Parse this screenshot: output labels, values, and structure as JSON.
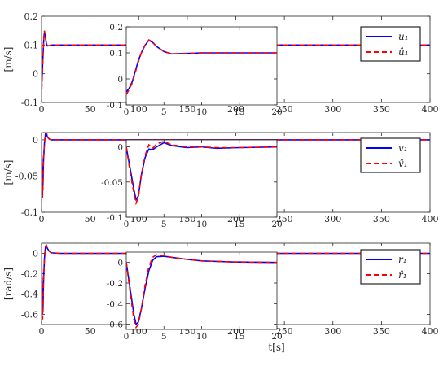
{
  "chart_data": [
    {
      "type": "line",
      "ylabel": "[m/s]",
      "xlim": [
        0,
        400
      ],
      "ylim": [
        -0.1,
        0.2
      ],
      "xticks": [
        0,
        50,
        100,
        150,
        200,
        250,
        300,
        350,
        400
      ],
      "yticks": [
        -0.1,
        0,
        0.1,
        0.2
      ],
      "ytick_labels": [
        "-0.1",
        "0",
        "0.1",
        "0.2"
      ],
      "legend": [
        "u₁",
        "û₁"
      ],
      "legend_position": "top-right",
      "series": [
        {
          "name": "u₁",
          "color": "#0000ff",
          "style": "solid",
          "x": [
            0,
            0.5,
            1,
            1.5,
            2,
            2.5,
            3,
            3.5,
            4,
            5,
            6,
            8,
            10,
            15,
            20,
            400
          ],
          "y": [
            -0.05,
            -0.02,
            0.02,
            0.06,
            0.1,
            0.13,
            0.145,
            0.14,
            0.125,
            0.105,
            0.097,
            0.098,
            0.1,
            0.1,
            0.1,
            0.1
          ]
        },
        {
          "name": "û₁",
          "color": "#ff0000",
          "style": "dashed",
          "x": [
            0,
            0.5,
            1,
            1.5,
            2,
            2.5,
            3,
            3.5,
            4,
            5,
            6,
            8,
            10,
            15,
            20,
            400
          ],
          "y": [
            -0.08,
            -0.03,
            0.01,
            0.06,
            0.1,
            0.13,
            0.15,
            0.14,
            0.125,
            0.105,
            0.097,
            0.098,
            0.1,
            0.1,
            0.1,
            0.1
          ]
        }
      ],
      "inset": {
        "xlim": [
          0,
          20
        ],
        "ylim": [
          -0.1,
          0.2
        ],
        "xticks": [
          0,
          5,
          10,
          15,
          20
        ],
        "yticks": [
          -0.1,
          0,
          0.1,
          0.2
        ],
        "ytick_labels": [
          "-0.1",
          "0",
          "0.1",
          "0.2"
        ],
        "series": [
          {
            "name": "u₁",
            "color": "#0000ff",
            "style": "solid",
            "x": [
              0,
              0.4,
              0.8,
              1.2,
              1.6,
              2,
              2.5,
              3,
              3.5,
              4,
              5,
              6,
              8,
              10,
              15,
              20
            ],
            "y": [
              -0.05,
              -0.035,
              -0.01,
              0.03,
              0.07,
              0.1,
              0.13,
              0.148,
              0.14,
              0.125,
              0.105,
              0.096,
              0.098,
              0.1,
              0.1,
              0.1
            ]
          },
          {
            "name": "û₁",
            "color": "#ff0000",
            "style": "dashed",
            "x": [
              0,
              0.4,
              0.8,
              1.2,
              1.6,
              2,
              2.5,
              3,
              3.5,
              4,
              5,
              6,
              8,
              10,
              15,
              20
            ],
            "y": [
              -0.06,
              -0.04,
              -0.015,
              0.025,
              0.065,
              0.1,
              0.13,
              0.15,
              0.142,
              0.125,
              0.105,
              0.096,
              0.098,
              0.1,
              0.1,
              0.1
            ]
          }
        ]
      }
    },
    {
      "type": "line",
      "ylabel": "[m/s]",
      "xlim": [
        0,
        400
      ],
      "ylim": [
        -0.1,
        0.01
      ],
      "xticks": [
        0,
        50,
        100,
        150,
        200,
        250,
        300,
        350,
        400
      ],
      "yticks": [
        -0.1,
        -0.05,
        0
      ],
      "ytick_labels": [
        "-0.1",
        "-0.05",
        "0"
      ],
      "legend": [
        "v₁",
        "v̂₁"
      ],
      "legend_position": "top-right",
      "series": [
        {
          "name": "v₁",
          "color": "#0000ff",
          "style": "solid",
          "x": [
            0,
            0.5,
            1,
            1.5,
            2,
            3,
            4,
            5,
            6,
            8,
            10,
            20,
            400
          ],
          "y": [
            0,
            -0.04,
            -0.075,
            -0.06,
            -0.03,
            -0.005,
            0.008,
            0.01,
            0.004,
            0.001,
            0,
            0,
            0
          ]
        },
        {
          "name": "v̂₁",
          "color": "#ff0000",
          "style": "dashed",
          "x": [
            0,
            0.5,
            1,
            1.5,
            2,
            3,
            4,
            5,
            6,
            8,
            10,
            20,
            400
          ],
          "y": [
            0,
            -0.045,
            -0.08,
            -0.062,
            -0.03,
            -0.004,
            0.009,
            0.011,
            0.004,
            0.001,
            0,
            0,
            0
          ]
        }
      ],
      "inset": {
        "xlim": [
          0,
          20
        ],
        "ylim": [
          -0.1,
          0.01
        ],
        "xticks": [
          0,
          5,
          10,
          15,
          20
        ],
        "yticks": [
          -0.1,
          -0.05,
          0
        ],
        "ytick_labels": [
          "-0.1",
          "-0.05",
          "0"
        ],
        "series": [
          {
            "name": "v₁",
            "color": "#0000ff",
            "style": "solid",
            "x": [
              0,
              0.5,
              1,
              1.3,
              1.6,
              2,
              2.5,
              3,
              3.5,
              4,
              5,
              6,
              8,
              10,
              12,
              15,
              20
            ],
            "y": [
              0,
              -0.03,
              -0.06,
              -0.075,
              -0.07,
              -0.04,
              -0.015,
              -0.003,
              -0.004,
              0,
              0.006,
              0.002,
              -0.001,
              0,
              -0.002,
              -0.001,
              0
            ]
          },
          {
            "name": "v̂₁",
            "color": "#ff0000",
            "style": "dashed",
            "x": [
              0,
              0.5,
              1,
              1.3,
              1.6,
              2,
              2.5,
              3,
              3.5,
              4,
              5,
              6,
              8,
              10,
              12,
              15,
              20
            ],
            "y": [
              0,
              -0.035,
              -0.065,
              -0.08,
              -0.072,
              -0.04,
              -0.012,
              0.003,
              -0.002,
              0.004,
              0.008,
              0.003,
              0,
              0,
              -0.001,
              -0.001,
              0
            ]
          }
        ]
      }
    },
    {
      "type": "line",
      "ylabel": "[rad/s]",
      "xlabel": "t[s]",
      "xlim": [
        0,
        400
      ],
      "ylim": [
        -0.7,
        0.1
      ],
      "xticks": [
        0,
        50,
        100,
        150,
        200,
        250,
        300,
        350,
        400
      ],
      "yticks": [
        -0.6,
        -0.4,
        -0.2,
        0
      ],
      "ytick_labels": [
        "-0.6",
        "-0.4",
        "-0.2",
        "0"
      ],
      "legend": [
        "r₁",
        "r̂₁"
      ],
      "legend_position": "top-right",
      "series": [
        {
          "name": "r₁",
          "color": "#0000ff",
          "style": "solid",
          "x": [
            0,
            0.5,
            1,
            1.5,
            2,
            3,
            4,
            5,
            6,
            8,
            10,
            20,
            400
          ],
          "y": [
            0,
            -0.3,
            -0.6,
            -0.55,
            -0.3,
            -0.05,
            0.06,
            0.07,
            0.05,
            0.02,
            0.005,
            0,
            0
          ]
        },
        {
          "name": "r̂₁",
          "color": "#ff0000",
          "style": "dashed",
          "x": [
            0,
            0.5,
            1,
            1.5,
            2,
            3,
            4,
            5,
            6,
            8,
            10,
            20,
            400
          ],
          "y": [
            0,
            -0.35,
            -0.65,
            -0.57,
            -0.3,
            -0.04,
            0.07,
            0.08,
            0.05,
            0.02,
            0.005,
            0,
            0
          ]
        }
      ],
      "inset": {
        "xlim": [
          0,
          20
        ],
        "ylim": [
          -0.65,
          0.1
        ],
        "xticks": [
          0,
          5,
          10,
          15,
          20
        ],
        "yticks": [
          -0.6,
          -0.4,
          -0.2,
          0
        ],
        "ytick_labels": [
          "-0.6",
          "-0.4",
          "-0.2",
          "0"
        ],
        "series": [
          {
            "name": "r₁",
            "color": "#0000ff",
            "style": "solid",
            "x": [
              0,
              0.5,
              1,
              1.3,
              1.6,
              2,
              2.5,
              3,
              3.5,
              4,
              5,
              6,
              8,
              10,
              14,
              20
            ],
            "y": [
              0,
              -0.25,
              -0.5,
              -0.6,
              -0.58,
              -0.45,
              -0.25,
              -0.08,
              0.02,
              0.055,
              0.06,
              0.05,
              0.03,
              0.015,
              0.005,
              0
            ]
          },
          {
            "name": "r̂₁",
            "color": "#ff0000",
            "style": "dashed",
            "x": [
              0,
              0.5,
              1,
              1.3,
              1.6,
              2,
              2.5,
              3,
              3.5,
              4,
              5,
              6,
              8,
              10,
              14,
              20
            ],
            "y": [
              0,
              -0.28,
              -0.55,
              -0.63,
              -0.6,
              -0.45,
              -0.22,
              -0.04,
              0.05,
              0.075,
              0.065,
              0.05,
              0.03,
              0.015,
              0.005,
              0
            ]
          }
        ]
      }
    }
  ]
}
